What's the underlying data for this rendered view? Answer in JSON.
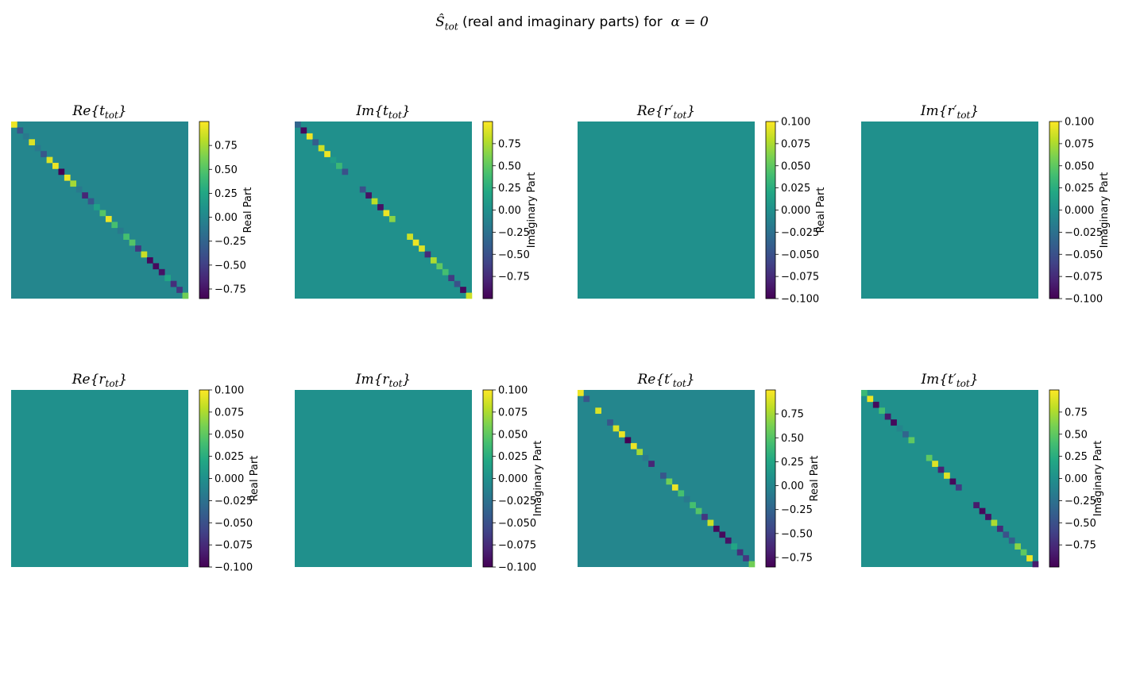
{
  "figure": {
    "title_prefix": "Ŝ",
    "title_sub": "tot",
    "title_middle": " (real and imaginary parts) for  ",
    "title_alpha": "α = 0"
  },
  "chart_data": [
    {
      "type": "heatmap",
      "name": "Re t_tot",
      "title_part": "Re",
      "title_symbol": "t",
      "title_prime": false,
      "title_sub": "tot",
      "matrix_size": 30,
      "diagonal": [
        0.95,
        -0.35,
        -0.1,
        0.9,
        -0.1,
        -0.35,
        0.9,
        0.95,
        -0.95,
        0.95,
        0.75,
        -0.1,
        -0.65,
        -0.35,
        0.2,
        0.5,
        0.95,
        0.45,
        -0.1,
        0.45,
        0.5,
        -0.55,
        0.85,
        -0.8,
        -0.8,
        -0.75,
        0.25,
        -0.6,
        -0.55,
        0.6
      ],
      "off_diagonal": 0.0,
      "clim": [
        -0.85,
        1.0
      ],
      "colorbar_ticks": [
        0.75,
        0.5,
        0.25,
        0.0,
        -0.25,
        -0.5,
        -0.75
      ],
      "colorbar_tick_labels": [
        "0.75",
        "0.50",
        "0.25",
        "0.00",
        "−0.25",
        "−0.50",
        "−0.75"
      ],
      "colorbar_label": "Real Part",
      "colormap": "viridis"
    },
    {
      "type": "heatmap",
      "name": "Im t_tot",
      "title_part": "Im",
      "title_symbol": "t",
      "title_prime": false,
      "title_sub": "tot",
      "matrix_size": 30,
      "diagonal": [
        -0.35,
        -0.95,
        0.95,
        -0.4,
        0.85,
        0.95,
        0.1,
        0.35,
        -0.5,
        0.0,
        0.0,
        -0.5,
        -0.9,
        0.8,
        -0.9,
        0.95,
        0.65,
        0.0,
        0.0,
        0.85,
        0.95,
        0.9,
        -0.75,
        0.75,
        0.5,
        0.4,
        -0.65,
        -0.5,
        -0.95,
        0.85
      ],
      "off_diagonal": 0.0,
      "clim": [
        -1.0,
        1.0
      ],
      "colorbar_ticks": [
        0.75,
        0.5,
        0.25,
        0.0,
        -0.25,
        -0.5,
        -0.75
      ],
      "colorbar_tick_labels": [
        "0.75",
        "0.50",
        "0.25",
        "0.00",
        "−0.25",
        "−0.50",
        "−0.75"
      ],
      "colorbar_label": "Imaginary Part",
      "colormap": "viridis"
    },
    {
      "type": "heatmap",
      "name": "Re r'_tot",
      "title_part": "Re",
      "title_symbol": "r",
      "title_prime": true,
      "title_sub": "tot",
      "matrix_size": 30,
      "diagonal": [],
      "off_diagonal": 0.0,
      "clim": [
        -0.1,
        0.1
      ],
      "colorbar_ticks": [
        0.1,
        0.075,
        0.05,
        0.025,
        0.0,
        -0.025,
        -0.05,
        -0.075,
        -0.1
      ],
      "colorbar_tick_labels": [
        "0.100",
        "0.075",
        "0.050",
        "0.025",
        "0.000",
        "−0.025",
        "−0.050",
        "−0.075",
        "−0.100"
      ],
      "colorbar_label": "Real Part",
      "colormap": "viridis"
    },
    {
      "type": "heatmap",
      "name": "Im r'_tot",
      "title_part": "Im",
      "title_symbol": "r",
      "title_prime": true,
      "title_sub": "tot",
      "matrix_size": 30,
      "diagonal": [],
      "off_diagonal": 0.0,
      "clim": [
        -0.1,
        0.1
      ],
      "colorbar_ticks": [
        0.1,
        0.075,
        0.05,
        0.025,
        0.0,
        -0.025,
        -0.05,
        -0.075,
        -0.1
      ],
      "colorbar_tick_labels": [
        "0.100",
        "0.075",
        "0.050",
        "0.025",
        "0.000",
        "−0.025",
        "−0.050",
        "−0.075",
        "−0.100"
      ],
      "colorbar_label": "Imaginary Part",
      "colormap": "viridis"
    },
    {
      "type": "heatmap",
      "name": "Re r_tot",
      "title_part": "Re",
      "title_symbol": "r",
      "title_prime": false,
      "title_sub": "tot",
      "matrix_size": 30,
      "diagonal": [],
      "off_diagonal": 0.0,
      "clim": [
        -0.1,
        0.1
      ],
      "colorbar_ticks": [
        0.1,
        0.075,
        0.05,
        0.025,
        0.0,
        -0.025,
        -0.05,
        -0.075,
        -0.1
      ],
      "colorbar_tick_labels": [
        "0.100",
        "0.075",
        "0.050",
        "0.025",
        "0.000",
        "−0.025",
        "−0.050",
        "−0.075",
        "−0.100"
      ],
      "colorbar_label": "Real Part",
      "colormap": "viridis"
    },
    {
      "type": "heatmap",
      "name": "Im r_tot",
      "title_part": "Im",
      "title_symbol": "r",
      "title_prime": false,
      "title_sub": "tot",
      "matrix_size": 30,
      "diagonal": [],
      "off_diagonal": 0.0,
      "clim": [
        -0.1,
        0.1
      ],
      "colorbar_ticks": [
        0.1,
        0.075,
        0.05,
        0.025,
        0.0,
        -0.025,
        -0.05,
        -0.075,
        -0.1
      ],
      "colorbar_tick_labels": [
        "0.100",
        "0.075",
        "0.050",
        "0.025",
        "0.000",
        "−0.025",
        "−0.050",
        "−0.075",
        "−0.100"
      ],
      "colorbar_label": "Imaginary Part",
      "colormap": "viridis"
    },
    {
      "type": "heatmap",
      "name": "Re t'_tot",
      "title_part": "Re",
      "title_symbol": "t",
      "title_prime": true,
      "title_sub": "tot",
      "matrix_size": 30,
      "diagonal": [
        0.95,
        -0.35,
        0.0,
        0.9,
        0.0,
        -0.35,
        0.9,
        0.95,
        -0.95,
        0.95,
        0.75,
        -0.1,
        -0.65,
        0.0,
        -0.35,
        0.6,
        0.95,
        0.45,
        -0.1,
        0.45,
        0.5,
        -0.55,
        0.85,
        -0.8,
        -0.8,
        -0.75,
        0.25,
        -0.6,
        -0.55,
        0.6
      ],
      "off_diagonal": 0.0,
      "clim": [
        -0.85,
        1.0
      ],
      "colorbar_ticks": [
        0.75,
        0.5,
        0.25,
        0.0,
        -0.25,
        -0.5,
        -0.75
      ],
      "colorbar_tick_labels": [
        "0.75",
        "0.50",
        "0.25",
        "0.00",
        "−0.25",
        "−0.50",
        "−0.75"
      ],
      "colorbar_label": "Real Part",
      "colormap": "viridis"
    },
    {
      "type": "heatmap",
      "name": "Im t'_tot",
      "title_part": "Im",
      "title_symbol": "t",
      "title_prime": true,
      "title_sub": "tot",
      "matrix_size": 30,
      "diagonal": [
        0.35,
        0.95,
        -0.95,
        0.4,
        -0.85,
        -0.95,
        -0.1,
        -0.35,
        0.5,
        0.0,
        0.0,
        0.5,
        0.9,
        -0.8,
        0.9,
        -0.95,
        -0.65,
        0.0,
        0.0,
        -0.85,
        -0.95,
        -0.9,
        0.75,
        -0.75,
        -0.5,
        -0.4,
        0.65,
        0.5,
        0.95,
        -0.85
      ],
      "off_diagonal": 0.0,
      "clim": [
        -1.0,
        1.0
      ],
      "colorbar_ticks": [
        0.75,
        0.5,
        0.25,
        0.0,
        -0.25,
        -0.5,
        -0.75
      ],
      "colorbar_tick_labels": [
        "0.75",
        "0.50",
        "0.25",
        "0.00",
        "−0.25",
        "−0.50",
        "−0.75"
      ],
      "colorbar_label": "Imaginary Part",
      "colormap": "viridis"
    }
  ]
}
